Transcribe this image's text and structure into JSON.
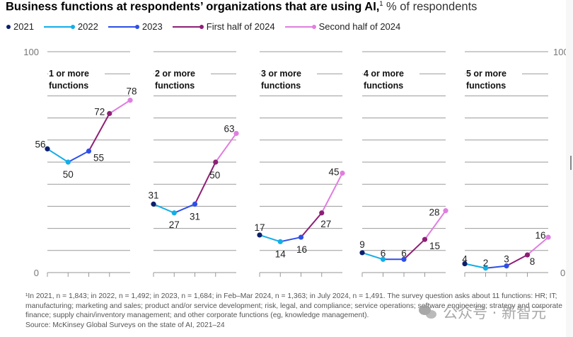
{
  "title": {
    "bold": "Business functions at respondents’ organizations that are using AI,",
    "footnote_mark": "1",
    "unit": " % of respondents"
  },
  "legend": [
    {
      "label": "2021",
      "color": "#0b1f6e",
      "line": false
    },
    {
      "label": "2022",
      "color": "#12aee6",
      "line": true
    },
    {
      "label": "2023",
      "color": "#2d4fe8",
      "line": true
    },
    {
      "label": "First half of 2024",
      "color": "#8e1f76",
      "line": true
    },
    {
      "label": "Second half of 2024",
      "color": "#e07ee0",
      "line": true
    }
  ],
  "chart_data": {
    "type": "line",
    "title": "Business functions at respondents’ organizations that are using AI, % of respondents",
    "x": [
      "2021",
      "2022",
      "2023",
      "First half of 2024",
      "Second half of 2024"
    ],
    "ylim": [
      0,
      100
    ],
    "y_ticks_labeled": [
      0,
      100
    ],
    "grid": true,
    "grid_step": 10,
    "legend_position": "top-left",
    "panels": [
      {
        "label_line1": "1 or more",
        "label_line2": "functions",
        "values": [
          56,
          50,
          55,
          72,
          78
        ]
      },
      {
        "label_line1": "2 or more",
        "label_line2": "functions",
        "values": [
          31,
          27,
          31,
          50,
          63
        ]
      },
      {
        "label_line1": "3 or more",
        "label_line2": "functions",
        "values": [
          17,
          14,
          16,
          27,
          45
        ]
      },
      {
        "label_line1": "4 or more",
        "label_line2": "functions",
        "values": [
          9,
          6,
          6,
          15,
          28
        ]
      },
      {
        "label_line1": "5 or more",
        "label_line2": "functions",
        "values": [
          4,
          2,
          3,
          8,
          16
        ]
      }
    ],
    "series_colors": [
      "#0b1f6e",
      "#12aee6",
      "#2d4fe8",
      "#8e1f76",
      "#e07ee0"
    ]
  },
  "axis": {
    "top_label": "100",
    "bottom_label": "0"
  },
  "footnote": {
    "text": "¹In 2021, n = 1,843; in 2022, n = 1,492; in 2023, n = 1,684; in Feb–Mar 2024, n = 1,363; in July 2024, n = 1,491. The survey question asks about 11 functions: HR; IT; manufacturing; marketing and sales; product and/or service development; risk, legal, and compliance; service operations; software engineering; strategy and corporate finance; supply chain/inventory management; and other corporate functions (eg, knowledge management).",
    "source": "Source: McKinsey Global Surveys on the state of AI, 2021–24"
  },
  "watermark": "公众号 · 新智元"
}
